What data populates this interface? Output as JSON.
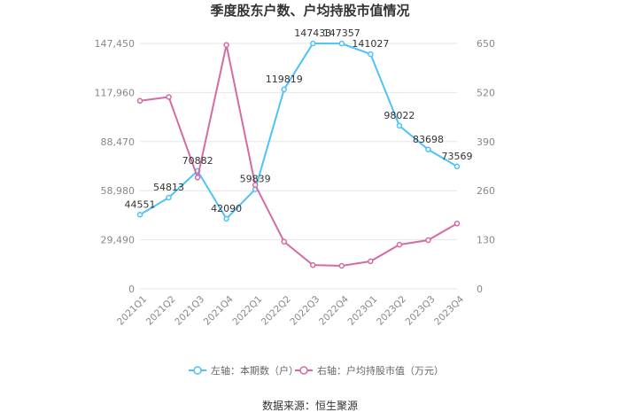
{
  "chart_data": {
    "type": "line",
    "title": "季度股东户数、户均持股市值情况",
    "source": "数据来源：恒生聚源",
    "categories": [
      "2021Q1",
      "2021Q2",
      "2021Q3",
      "2021Q4",
      "2022Q1",
      "2022Q2",
      "2022Q3",
      "2022Q4",
      "2023Q1",
      "2023Q2",
      "2023Q3",
      "2023Q4"
    ],
    "left_axis": {
      "ticks": [
        "0",
        "29,490",
        "58,980",
        "88,470",
        "117,960",
        "147,450"
      ],
      "ylim": [
        0,
        147450
      ]
    },
    "right_axis": {
      "ticks": [
        "0",
        "130",
        "260",
        "390",
        "520",
        "650"
      ],
      "ylim": [
        0,
        650
      ]
    },
    "series": [
      {
        "name": "左轴：本期数（户）",
        "axis": "left",
        "color": "#4fc3f7",
        "values": [
          44551,
          54813,
          70882,
          42090,
          59839,
          119819,
          147433,
          147357,
          141027,
          98022,
          83698,
          73569
        ],
        "labels": [
          "44551",
          "54813",
          "70882",
          "42090",
          "59839",
          "119819",
          "147433",
          "147357",
          "141027",
          "98022",
          "83698",
          "73569"
        ]
      },
      {
        "name": "右轴：户均持股市值（万元）",
        "axis": "right",
        "color": "#d36ba6",
        "values": [
          498,
          508,
          295,
          646,
          275,
          125,
          63,
          61,
          73,
          117,
          129,
          173
        ]
      }
    ],
    "grid": true,
    "legend_position": "bottom"
  }
}
